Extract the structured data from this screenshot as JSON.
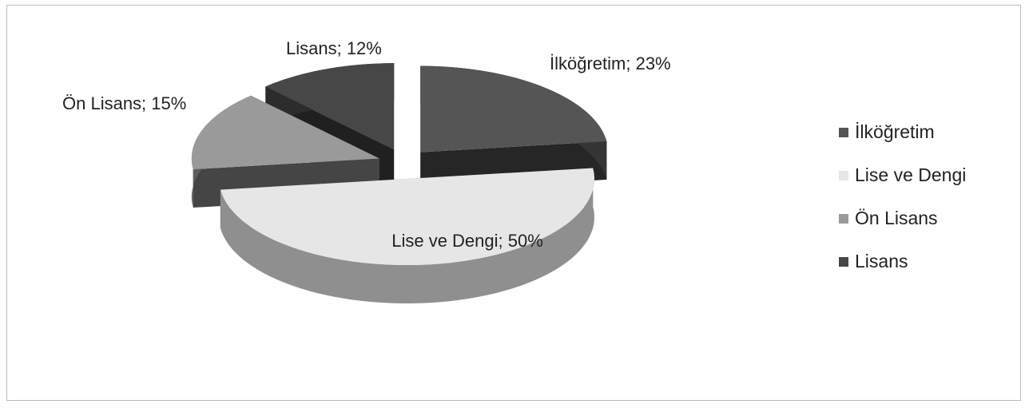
{
  "chart_data": {
    "type": "pie",
    "categories": [
      "İlköğretim",
      "Lise ve Dengi",
      "Ön Lisans",
      "Lisans"
    ],
    "values": [
      23,
      50,
      15,
      12
    ],
    "value_labels": [
      "İlköğretim; 23%",
      "Lise ve Dengi; 50%",
      "Ön Lisans; 15%",
      "Lisans; 12%"
    ],
    "colors": [
      "#555555",
      "#e6e6e6",
      "#9a9a9a",
      "#474747"
    ],
    "legend": "right"
  }
}
